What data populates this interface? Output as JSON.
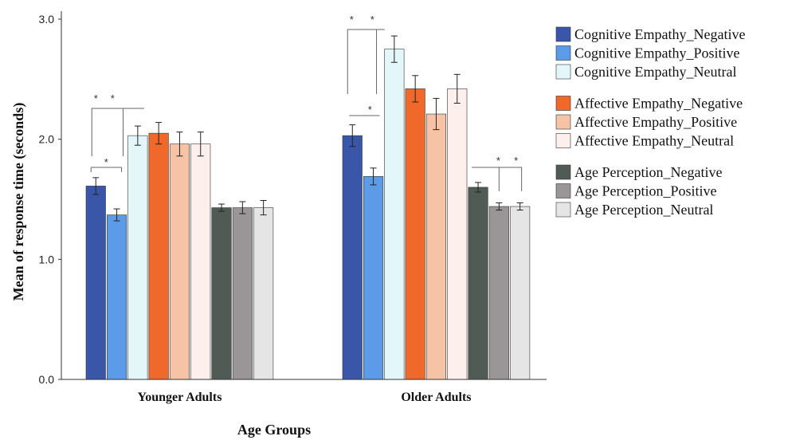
{
  "chart_data": {
    "type": "bar",
    "xlabel": "Age Groups",
    "ylabel": "Mean of response time (seconds)",
    "ylim": [
      0,
      3.0
    ],
    "yticks": [
      "0.0",
      "1.0",
      "2.0",
      "3.0"
    ],
    "categories": [
      "Younger Adults",
      "Older Adults"
    ],
    "grid": false,
    "legend_position": "right",
    "series": [
      {
        "name": "Cognitive Empathy_Negative",
        "color": "#3a56a8",
        "values": [
          1.61,
          2.03
        ],
        "errors": [
          0.07,
          0.09
        ]
      },
      {
        "name": "Cognitive Empathy_Positive",
        "color": "#5b9be8",
        "values": [
          1.37,
          1.69
        ],
        "errors": [
          0.05,
          0.07
        ]
      },
      {
        "name": "Cognitive Empathy_Neutral",
        "color": "#e3f7fb",
        "values": [
          2.03,
          2.75
        ],
        "errors": [
          0.08,
          0.11
        ]
      },
      {
        "name": "Affective Empathy_Negative",
        "color": "#f0682a",
        "values": [
          2.05,
          2.42
        ],
        "errors": [
          0.09,
          0.11
        ]
      },
      {
        "name": "Affective Empathy_Positive",
        "color": "#f6c3a6",
        "values": [
          1.96,
          2.21
        ],
        "errors": [
          0.1,
          0.13
        ]
      },
      {
        "name": "Affective Empathy_Neutral",
        "color": "#fdf0ec",
        "values": [
          1.96,
          2.42
        ],
        "errors": [
          0.1,
          0.12
        ]
      },
      {
        "name": "Age Perception_Negative",
        "color": "#515b55",
        "values": [
          1.43,
          1.6
        ],
        "errors": [
          0.03,
          0.04
        ]
      },
      {
        "name": "Age Perception_Positive",
        "color": "#9a9596",
        "values": [
          1.43,
          1.44
        ],
        "errors": [
          0.05,
          0.03
        ]
      },
      {
        "name": "Age Perception_Neutral",
        "color": "#e5e5e5",
        "values": [
          1.43,
          1.44
        ],
        "errors": [
          0.06,
          0.03
        ]
      }
    ],
    "significance_marker": "*"
  }
}
